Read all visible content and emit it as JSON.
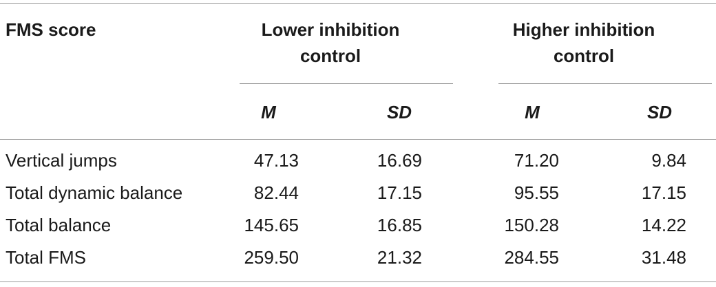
{
  "table": {
    "row_header_label": "FMS score",
    "groups": [
      {
        "label": "Lower inhibition control",
        "sub": [
          "M",
          "SD"
        ]
      },
      {
        "label": "Higher inhibition control",
        "sub": [
          "M",
          "SD"
        ]
      }
    ],
    "rows": [
      {
        "label": "Vertical jumps",
        "values": [
          "47.13",
          "16.69",
          "71.20",
          "9.84"
        ]
      },
      {
        "label": "Total dynamic balance",
        "values": [
          "82.44",
          "17.15",
          "95.55",
          "17.15"
        ]
      },
      {
        "label": "Total balance",
        "values": [
          "145.65",
          "16.85",
          "150.28",
          "14.22"
        ]
      },
      {
        "label": "Total FMS",
        "values": [
          "259.50",
          "21.32",
          "284.55",
          "31.48"
        ]
      }
    ]
  }
}
